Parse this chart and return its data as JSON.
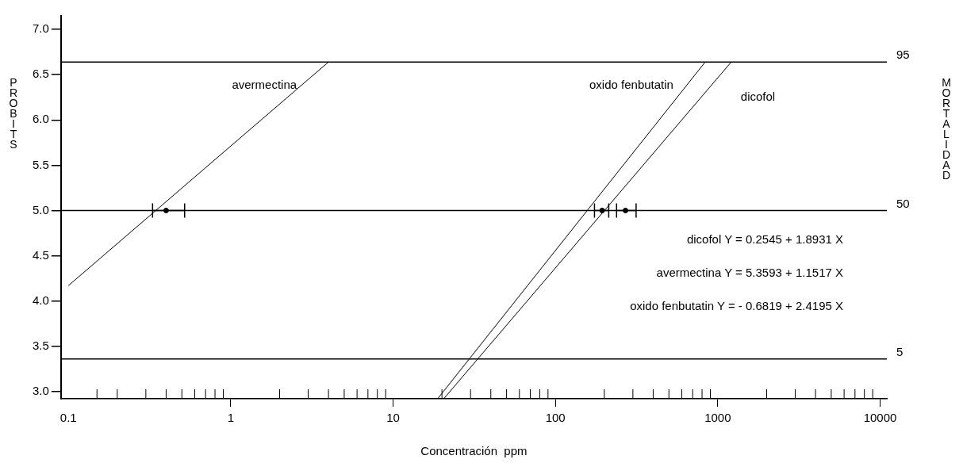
{
  "chart_data": {
    "type": "line",
    "xlabel": "Concentración  ppm",
    "ylabel": "PROBITS",
    "y2label": "MORTALIDAD",
    "log": "x",
    "grid": false,
    "legend": false,
    "marker": "none",
    "line_style": "solid",
    "xlim": [
      0.09,
      11000
    ],
    "xticks": [
      {
        "value": 0.1,
        "label": "0.1"
      },
      {
        "value": 0.15,
        "label": null
      },
      {
        "value": 0.2,
        "label": null
      },
      {
        "value": 0.3,
        "label": null
      },
      {
        "value": 0.4,
        "label": null
      },
      {
        "value": 0.5,
        "label": null
      },
      {
        "value": 0.6,
        "label": null
      },
      {
        "value": 0.7,
        "label": null
      },
      {
        "value": 0.8,
        "label": null
      },
      {
        "value": 0.9,
        "label": null
      },
      {
        "value": 1,
        "label": "1"
      },
      {
        "value": 2,
        "label": null
      },
      {
        "value": 3,
        "label": null
      },
      {
        "value": 4,
        "label": null
      },
      {
        "value": 5,
        "label": null
      },
      {
        "value": 6,
        "label": null
      },
      {
        "value": 7,
        "label": null
      },
      {
        "value": 8,
        "label": null
      },
      {
        "value": 9,
        "label": null
      },
      {
        "value": 10,
        "label": "10"
      },
      {
        "value": 20,
        "label": null
      },
      {
        "value": 30,
        "label": null
      },
      {
        "value": 40,
        "label": null
      },
      {
        "value": 50,
        "label": null
      },
      {
        "value": 60,
        "label": null
      },
      {
        "value": 70,
        "label": null
      },
      {
        "value": 80,
        "label": null
      },
      {
        "value": 90,
        "label": null
      },
      {
        "value": 100,
        "label": "100"
      },
      {
        "value": 200,
        "label": null
      },
      {
        "value": 300,
        "label": null
      },
      {
        "value": 400,
        "label": null
      },
      {
        "value": 500,
        "label": null
      },
      {
        "value": 600,
        "label": null
      },
      {
        "value": 700,
        "label": null
      },
      {
        "value": 800,
        "label": null
      },
      {
        "value": 900,
        "label": null
      },
      {
        "value": 1000,
        "label": "1000"
      },
      {
        "value": 2000,
        "label": null
      },
      {
        "value": 3000,
        "label": null
      },
      {
        "value": 4000,
        "label": null
      },
      {
        "value": 5000,
        "label": null
      },
      {
        "value": 6000,
        "label": null
      },
      {
        "value": 7000,
        "label": null
      },
      {
        "value": 8000,
        "label": null
      },
      {
        "value": 9000,
        "label": null
      },
      {
        "value": 10000,
        "label": "10000"
      }
    ],
    "ylim": [
      2.92,
      7.15
    ],
    "yticks": [
      {
        "value": 3,
        "label": "3.0"
      },
      {
        "value": 3.5,
        "label": "3.5"
      },
      {
        "value": 4,
        "label": "4.0"
      },
      {
        "value": 4.5,
        "label": "4.5"
      },
      {
        "value": 5,
        "label": "5.0"
      },
      {
        "value": 5.5,
        "label": "5.5"
      },
      {
        "value": 6,
        "label": "6.0"
      },
      {
        "value": 6.5,
        "label": "6.5"
      },
      {
        "value": 7,
        "label": "7.0"
      }
    ],
    "ref_lines": [
      {
        "axis": "y",
        "value": 6.64,
        "color": "#000000"
      },
      {
        "axis": "y",
        "value": 5,
        "color": "#000000"
      },
      {
        "axis": "y",
        "value": 3.36,
        "color": "#000000"
      }
    ],
    "series": [
      {
        "name": "avermectina",
        "color": "#000000",
        "x": [
          0.1,
          4
        ],
        "values": [
          4.17,
          6.64
        ]
      },
      {
        "name": "oxido fenbutatin",
        "color": "#000000",
        "x": [
          18.8,
          836
        ],
        "values": [
          2.92,
          6.64
        ]
      },
      {
        "name": "dicofol",
        "color": "#000000",
        "x": [
          20.5,
          1210
        ],
        "values": [
          2.92,
          6.64
        ]
      },
      {
        "type": "scatter",
        "marker": "circle",
        "color": "#000000",
        "x": [
          0.4,
          194,
          270
        ],
        "values": [
          5,
          5,
          5
        ],
        "xerrors": [
          [
            0.33,
            0.52
          ],
          [
            174,
            213
          ],
          [
            238,
            314
          ]
        ]
      }
    ],
    "annotations": [
      "95",
      "50",
      "5",
      "dicofol Y = 0.2545 + 1.8931 X",
      "avermectina Y = 5.3593 + 1.1517 X",
      "oxido fenbutatin Y = - 0.6819 + 2.4195 X"
    ]
  }
}
